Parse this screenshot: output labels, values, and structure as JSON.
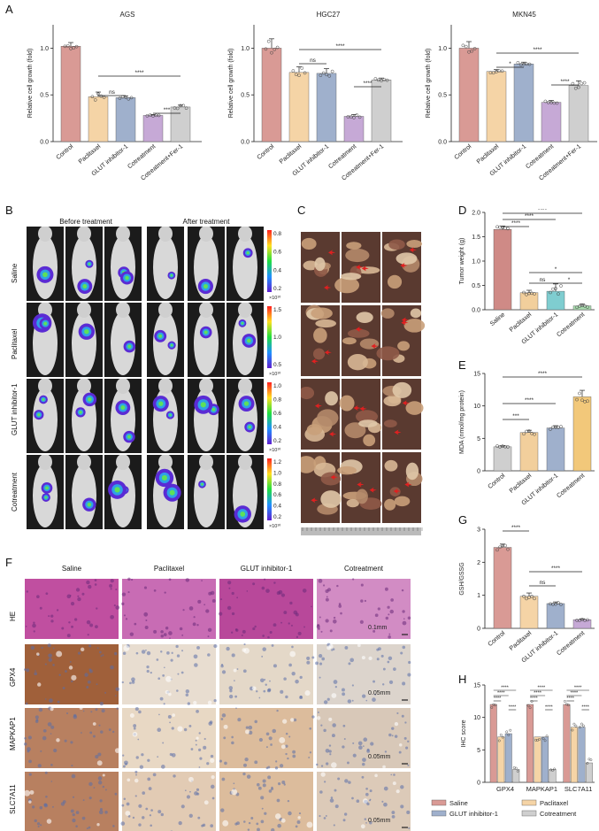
{
  "panels": {
    "A": "A",
    "B": "B",
    "C": "C",
    "D": "D",
    "E": "E",
    "F": "F",
    "G": "G",
    "H": "H"
  },
  "colors": {
    "control": "#d99a95",
    "paclitaxel": "#f5d4a6",
    "glut": "#9fb0cc",
    "cotreatment": "#c6a9d6",
    "fer1": "#cfcfcf",
    "saline": "#d99a95",
    "d_control": "#cf8a86",
    "d_paclitaxel": "#f2cf9c",
    "d_glut": "#7fcdd0",
    "d_cotreatment": "#a8dcae",
    "e_control": "#cfcfcf",
    "e_paclitaxel": "#f2cf9c",
    "e_glut": "#9fb0cc",
    "e_cotreatment": "#f2c87a"
  },
  "chart_data": [
    {
      "id": "A1",
      "type": "bar",
      "title": "AGS",
      "ylabel": "Relative cell growth (fold)",
      "ylim": [
        0,
        1.25
      ],
      "yticks": [
        "0.0",
        "0.5",
        "1.0"
      ],
      "categories": [
        "Control",
        "Paclitaxel",
        "GLUT inhibitor-1",
        "Cotreatment",
        "Cotreatment+Fer-1"
      ],
      "values": [
        1.02,
        0.48,
        0.47,
        0.28,
        0.37
      ],
      "errors": [
        0.04,
        0.05,
        0.02,
        0.01,
        0.02
      ],
      "significance": [
        {
          "from": 1,
          "to": 4,
          "label": "****"
        },
        {
          "from": 1,
          "to": 2,
          "label": "ns"
        },
        {
          "from": 3,
          "to": 4,
          "label": "***"
        }
      ]
    },
    {
      "id": "A2",
      "type": "bar",
      "title": "HGC27",
      "ylabel": "Relative cell growth (fold)",
      "ylim": [
        0,
        1.25
      ],
      "yticks": [
        "0.0",
        "0.5",
        "1.0"
      ],
      "categories": [
        "Control",
        "Paclitaxel",
        "GLUT inhibitor-1",
        "Cotreatment",
        "Cotreatment+Fer-1"
      ],
      "values": [
        1.0,
        0.74,
        0.73,
        0.27,
        0.66
      ],
      "errors": [
        0.1,
        0.06,
        0.05,
        0.02,
        0.02
      ],
      "significance": [
        {
          "from": 1,
          "to": 4,
          "label": "****"
        },
        {
          "from": 1,
          "to": 2,
          "label": "ns"
        },
        {
          "from": 3,
          "to": 4,
          "label": "****"
        }
      ]
    },
    {
      "id": "A3",
      "type": "bar",
      "title": "MKN45",
      "ylabel": "Relative cell growth (fold)",
      "ylim": [
        0,
        1.25
      ],
      "yticks": [
        "0.0",
        "0.5",
        "1.0"
      ],
      "categories": [
        "Control",
        "Paclitaxel",
        "GLUT inhibitor-1",
        "Cotreatment",
        "Cotreatment+Fer-1"
      ],
      "values": [
        1.0,
        0.75,
        0.83,
        0.42,
        0.6
      ],
      "errors": [
        0.07,
        0.02,
        0.02,
        0.02,
        0.05
      ],
      "significance": [
        {
          "from": 1,
          "to": 4,
          "label": "****"
        },
        {
          "from": 1,
          "to": 2,
          "label": "*"
        },
        {
          "from": 3,
          "to": 4,
          "label": "****"
        }
      ]
    },
    {
      "id": "D",
      "type": "bar",
      "title": "",
      "ylabel": "Tumor weight (g)",
      "ylim": [
        0,
        2.0
      ],
      "yticks": [
        "0.0",
        "0.5",
        "1.0",
        "1.5",
        "2.0"
      ],
      "categories": [
        "Saline",
        "Paclitaxel",
        "GLUT inhibitor-1",
        "Cotreatment"
      ],
      "values": [
        1.65,
        0.35,
        0.38,
        0.08
      ],
      "errors": [
        0.07,
        0.05,
        0.15,
        0.04
      ],
      "significance": [
        {
          "from": 0,
          "to": 1,
          "label": "****"
        },
        {
          "from": 0,
          "to": 2,
          "label": "****"
        },
        {
          "from": 0,
          "to": 3,
          "label": "****"
        },
        {
          "from": 1,
          "to": 3,
          "label": "*"
        },
        {
          "from": 1,
          "to": 2,
          "label": "ns"
        },
        {
          "from": 2,
          "to": 3,
          "label": "*"
        }
      ]
    },
    {
      "id": "E",
      "type": "bar",
      "title": "",
      "ylabel": "MDA (nmol/mg protein)",
      "ylim": [
        0,
        15
      ],
      "yticks": [
        "0",
        "5",
        "10",
        "15"
      ],
      "categories": [
        "Control",
        "Paclitaxel",
        "GLUT inhibitor-1",
        "Cotreatment"
      ],
      "values": [
        3.7,
        5.9,
        6.6,
        11.4
      ],
      "errors": [
        0.15,
        0.35,
        0.35,
        1.0
      ],
      "significance": [
        {
          "from": 0,
          "to": 3,
          "label": "****"
        },
        {
          "from": 0,
          "to": 2,
          "label": "****"
        },
        {
          "from": 0,
          "to": 1,
          "label": "***"
        }
      ]
    },
    {
      "id": "G",
      "type": "bar",
      "title": "",
      "ylabel": "GSH/GSSG",
      "ylim": [
        0,
        3
      ],
      "yticks": [
        "0",
        "1",
        "2",
        "3"
      ],
      "categories": [
        "Control",
        "Paclitaxel",
        "GLUT inhibitor-1",
        "Cotreatment"
      ],
      "values": [
        2.45,
        0.97,
        0.75,
        0.26
      ],
      "errors": [
        0.1,
        0.1,
        0.05,
        0.03
      ],
      "significance": [
        {
          "from": 0,
          "to": 1,
          "label": "****"
        },
        {
          "from": 1,
          "to": 3,
          "label": "****"
        },
        {
          "from": 1,
          "to": 2,
          "label": "ns"
        }
      ]
    },
    {
      "id": "H",
      "type": "bar",
      "title": "",
      "ylabel": "IHC score",
      "ylim": [
        0,
        15
      ],
      "yticks": [
        "0",
        "5",
        "10",
        "15"
      ],
      "categories": [
        "GPX4",
        "MAPKAP1",
        "SLC7A11"
      ],
      "series": [
        {
          "name": "Saline",
          "values": [
            12,
            12,
            12
          ]
        },
        {
          "name": "Paclitaxel",
          "values": [
            7,
            7,
            8.5
          ]
        },
        {
          "name": "GLUT inhibitor-1",
          "values": [
            7.5,
            7,
            8.5
          ]
        },
        {
          "name": "Cotreatment",
          "values": [
            2,
            2,
            3
          ]
        }
      ],
      "sig_label": "****"
    }
  ],
  "panelB": {
    "col_before": "Before treatment",
    "col_after": "After treatment",
    "rows": [
      "Saline",
      "Paclitaxel",
      "GLUT inhibitor-1",
      "Cotreatment"
    ],
    "scales": [
      {
        "ticks": [
          "0.8",
          "0.6",
          "0.4",
          "0.2"
        ],
        "unit": "×10¹⁰"
      },
      {
        "ticks": [
          "1.5",
          "1.0",
          "0.5"
        ],
        "unit": "×10¹⁰"
      },
      {
        "ticks": [
          "1.0",
          "0.8",
          "0.6",
          "0.4",
          "0.2"
        ],
        "unit": "×10¹⁰"
      },
      {
        "ticks": [
          "1.2",
          "1.0",
          "0.8",
          "0.6",
          "0.4",
          "0.2"
        ],
        "unit": "×10¹⁰"
      }
    ]
  },
  "panelF": {
    "cols": [
      "Saline",
      "Paclitaxel",
      "GLUT inhibitor-1",
      "Cotreatment"
    ],
    "rows": [
      "HE",
      "GPX4",
      "MAPKAP1",
      "SLC7A11"
    ],
    "scalebars": [
      "0.1mm",
      "0.05mm",
      "0.05mm",
      "0.05mm"
    ]
  }
}
